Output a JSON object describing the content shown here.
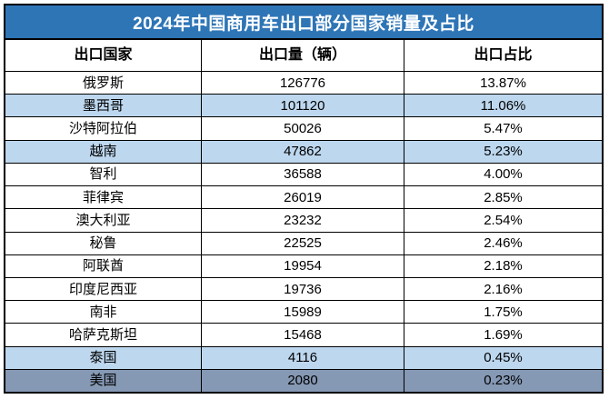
{
  "title": "2024年中国商用车出口部分国家销量及占比",
  "headers": {
    "country": "出口国家",
    "volume": "出口量（辆）",
    "share": "出口占比"
  },
  "rows": [
    {
      "country": "俄罗斯",
      "volume": "126776",
      "share": "13.87%",
      "bg": "white"
    },
    {
      "country": "墨西哥",
      "volume": "101120",
      "share": "11.06%",
      "bg": "blue"
    },
    {
      "country": "沙特阿拉伯",
      "volume": "50026",
      "share": "5.47%",
      "bg": "white"
    },
    {
      "country": "越南",
      "volume": "47862",
      "share": "5.23%",
      "bg": "blue"
    },
    {
      "country": "智利",
      "volume": "36588",
      "share": "4.00%",
      "bg": "white"
    },
    {
      "country": "菲律宾",
      "volume": "26019",
      "share": "2.85%",
      "bg": "white"
    },
    {
      "country": "澳大利亚",
      "volume": "23232",
      "share": "2.54%",
      "bg": "white"
    },
    {
      "country": "秘鲁",
      "volume": "22525",
      "share": "2.46%",
      "bg": "white"
    },
    {
      "country": "阿联酋",
      "volume": "19954",
      "share": "2.18%",
      "bg": "white"
    },
    {
      "country": "印度尼西亚",
      "volume": "19736",
      "share": "2.16%",
      "bg": "white"
    },
    {
      "country": "南非",
      "volume": "15989",
      "share": "1.75%",
      "bg": "white"
    },
    {
      "country": "哈萨克斯坦",
      "volume": "15468",
      "share": "1.69%",
      "bg": "white"
    },
    {
      "country": "泰国",
      "volume": "4116",
      "share": "0.45%",
      "bg": "blue"
    },
    {
      "country": "美国",
      "volume": "2080",
      "share": "0.23%",
      "bg": "dark"
    }
  ],
  "colors": {
    "title_bg": "#2E75B6",
    "title_text": "#FFFFFF",
    "row_white": "#FFFFFF",
    "row_blue": "#BDD7EE",
    "row_dark": "#8598B4",
    "border": "#000000",
    "text": "#000000"
  },
  "chart_data": {
    "type": "table",
    "title": "2024年中国商用车出口部分国家销量及占比",
    "columns": [
      "出口国家",
      "出口量（辆）",
      "出口占比"
    ],
    "rows": [
      [
        "俄罗斯",
        126776,
        "13.87%"
      ],
      [
        "墨西哥",
        101120,
        "11.06%"
      ],
      [
        "沙特阿拉伯",
        50026,
        "5.47%"
      ],
      [
        "越南",
        47862,
        "5.23%"
      ],
      [
        "智利",
        36588,
        "4.00%"
      ],
      [
        "菲律宾",
        26019,
        "2.85%"
      ],
      [
        "澳大利亚",
        23232,
        "2.54%"
      ],
      [
        "秘鲁",
        22525,
        "2.46%"
      ],
      [
        "阿联酋",
        19954,
        "2.18%"
      ],
      [
        "印度尼西亚",
        19736,
        "2.16%"
      ],
      [
        "南非",
        15989,
        "1.75%"
      ],
      [
        "哈萨克斯坦",
        15468,
        "1.69%"
      ],
      [
        "泰国",
        4116,
        "0.45%"
      ],
      [
        "美国",
        2080,
        "0.23%"
      ]
    ]
  }
}
